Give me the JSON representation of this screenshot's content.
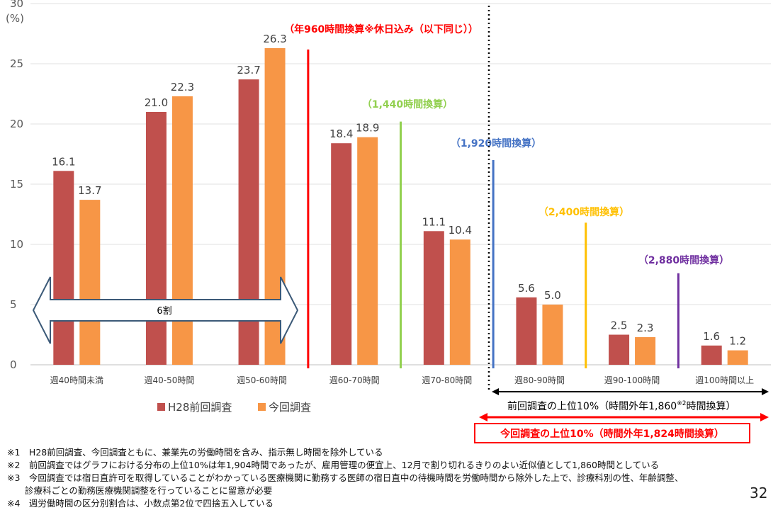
{
  "chart_data": {
    "type": "bar",
    "y_axis": {
      "min": 0,
      "max": 30,
      "ticks": [
        0,
        5,
        10,
        15,
        20,
        25,
        30
      ],
      "unit": "(%)"
    },
    "categories": [
      "週40時間未満",
      "週40-50時間",
      "週50-60時間",
      "週60-70時間",
      "週70-80時間",
      "週80-90時間",
      "週90-100時間",
      "週100時間以上"
    ],
    "series": [
      {
        "name": "H28前回調査",
        "color": "#C0504D",
        "values": [
          16.1,
          21.0,
          23.7,
          18.4,
          11.1,
          5.6,
          2.5,
          1.6
        ]
      },
      {
        "name": "今回調査",
        "color": "#F79646",
        "values": [
          13.7,
          22.3,
          26.3,
          18.9,
          10.4,
          5.0,
          2.3,
          1.2
        ]
      }
    ],
    "value_labels": [
      [
        "16.1",
        "21.0",
        "23.7",
        "18.4",
        "11.1",
        "5.6",
        "2.5",
        "1.6"
      ],
      [
        "13.7",
        "22.3",
        "26.3",
        "18.9",
        "10.4",
        "5.0",
        "2.3",
        "1.2"
      ]
    ],
    "legend_position": "bottom-center",
    "grid": true,
    "threshold_lines": [
      {
        "after_category_index": 2,
        "label": "（年960時間換算※休日込み（以下同じ））",
        "color": "#FF0000"
      },
      {
        "after_category_index": 3,
        "label": "（1,440時間換算）",
        "color": "#92D050"
      },
      {
        "after_category_index": 4,
        "label": "（1,920時間換算）",
        "color": "#4472C4"
      },
      {
        "after_category_index": 5,
        "label": "（2,400時間換算）",
        "color": "#FFC000"
      },
      {
        "after_category_index": 6,
        "label": "（2,880時間換算）",
        "color": "#7030A0"
      }
    ],
    "six_wari_label": "6割",
    "previous_top10_label": "前回調査の上位10%（時間外年1,860",
    "previous_top10_sup": "※2",
    "previous_top10_suffix": "時間換算）",
    "current_top10_label": "今回調査の上位10%（時間外年1,824時間換算）"
  },
  "notes": [
    "※1　H28前回調査、今回調査ともに、兼業先の労働時間を含み、指示無し時間を除外している",
    "※2　前回調査ではグラフにおける分布の上位10%は年1,904時間であったが、雇用管理の便宜上、12月で割り切れるきりのよい近似値として1,860時間としている",
    "※3　今回調査では宿日直許可を取得していることがわかっている医療機関に勤務する医師の宿日直中の待機時間を労働時間から除外した上で、診療科別の性、年齢調整、",
    "　　診療科ごとの勤務医療機関調整を行っていることに留意が必要",
    "※4　週労働時間の区分別割合は、小数点第2位で四捨五入している"
  ],
  "page_number": "32"
}
